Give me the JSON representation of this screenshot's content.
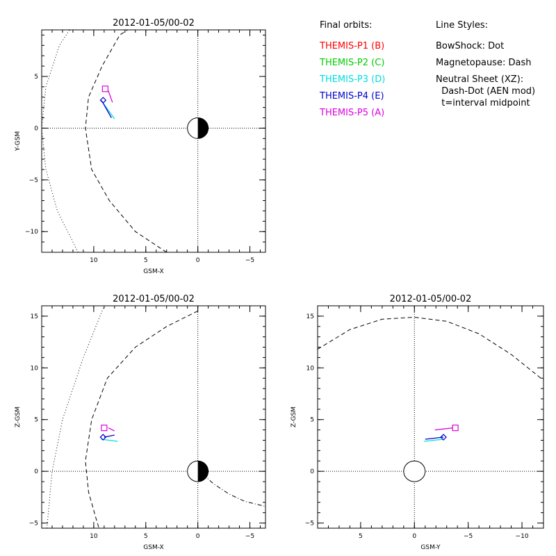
{
  "legend": {
    "orbits_title": "Final orbits:",
    "probes": [
      {
        "label": "THEMIS-P1 (B)",
        "color": "#ff0000"
      },
      {
        "label": "THEMIS-P2 (C)",
        "color": "#00cc00"
      },
      {
        "label": "THEMIS-P3 (D)",
        "color": "#00dddd"
      },
      {
        "label": "THEMIS-P4 (E)",
        "color": "#0000cc"
      },
      {
        "label": "THEMIS-P5 (A)",
        "color": "#dd00dd"
      }
    ],
    "styles_title": "Line Styles:",
    "styles": [
      "BowShock: Dot",
      "Magnetopause: Dash",
      "Neutral Sheet (XZ):",
      "  Dash-Dot (AEN mod)",
      "  t=interval midpoint"
    ]
  },
  "chart_data": [
    {
      "type": "line",
      "title": "2012-01-05/00-02",
      "xlabel": "GSM-X",
      "ylabel": "Y-GSM",
      "xlim": [
        15,
        -6.5
      ],
      "ylim": [
        -12,
        9.5
      ],
      "xticks": [
        10,
        5,
        0,
        -5
      ],
      "yticks": [
        -10,
        -5,
        0,
        5
      ],
      "orbits": [
        {
          "probe": "THEMIS-P3",
          "color": "#00dddd",
          "x": [
            9.3,
            8.0
          ],
          "y": [
            2.7,
            0.9
          ]
        },
        {
          "probe": "THEMIS-P4",
          "color": "#0000cc",
          "x": [
            9.2,
            8.3
          ],
          "y": [
            2.6,
            1.0
          ]
        },
        {
          "probe": "THEMIS-P5",
          "color": "#dd00dd",
          "x": [
            8.6,
            8.2
          ],
          "y": [
            3.6,
            2.5
          ]
        }
      ],
      "markers": [
        {
          "probe": "THEMIS-P5",
          "shape": "square",
          "x": 8.9,
          "y": 3.8,
          "color": "#dd00dd"
        },
        {
          "probe": "THEMIS-P4",
          "shape": "diamond",
          "x": 9.1,
          "y": 2.7,
          "color": "#0000cc"
        }
      ],
      "bowshock": {
        "x": [
          11.5,
          13.5,
          14.6,
          15.0,
          14.6,
          13.3,
          12.0
        ],
        "y": [
          -12,
          -8,
          -4,
          0,
          4,
          8,
          10
        ]
      },
      "magnetopause": {
        "x": [
          3,
          6,
          8.5,
          10.2,
          10.8,
          10.5,
          9.2,
          7.5,
          6
        ],
        "y": [
          -12,
          -10,
          -7,
          -4,
          0,
          3,
          6,
          9,
          10
        ]
      }
    },
    {
      "type": "line",
      "title": "2012-01-05/00-02",
      "xlabel": "GSM-X",
      "ylabel": "Z-GSM",
      "xlim": [
        15,
        -6.5
      ],
      "ylim": [
        -5.5,
        16
      ],
      "xticks": [
        10,
        5,
        0,
        -5
      ],
      "yticks": [
        -5,
        0,
        5,
        10,
        15
      ],
      "orbits": [
        {
          "probe": "THEMIS-P3",
          "color": "#00dddd",
          "x": [
            9.3,
            7.7
          ],
          "y": [
            3.1,
            2.9
          ]
        },
        {
          "probe": "THEMIS-P4",
          "color": "#0000cc",
          "x": [
            9.0,
            8.0
          ],
          "y": [
            3.3,
            3.5
          ]
        },
        {
          "probe": "THEMIS-P5",
          "color": "#dd00dd",
          "x": [
            8.6,
            8.0
          ],
          "y": [
            4.2,
            3.9
          ]
        }
      ],
      "markers": [
        {
          "probe": "THEMIS-P5",
          "shape": "square",
          "x": 9.0,
          "y": 4.2,
          "color": "#dd00dd"
        },
        {
          "probe": "THEMIS-P4",
          "shape": "diamond",
          "x": 9.1,
          "y": 3.3,
          "color": "#0000cc"
        }
      ],
      "bowshock": {
        "x": [
          14.5,
          14.0,
          13.0,
          11.0,
          9.0
        ],
        "y": [
          -5.5,
          0,
          5,
          11,
          16
        ]
      },
      "magnetopause": {
        "x": [
          0,
          3,
          6,
          8.7,
          10.2,
          10.8,
          10.5,
          9.8,
          9.5
        ],
        "y": [
          15.5,
          14,
          12,
          9,
          5,
          1,
          -2,
          -4.5,
          -5.5
        ]
      },
      "neutral_sheet": {
        "x": [
          -0.5,
          -1.5,
          -3,
          -4.5,
          -6.5
        ],
        "y": [
          -0.3,
          -1.2,
          -2.2,
          -2.9,
          -3.4
        ]
      }
    },
    {
      "type": "line",
      "title": "2012-01-05/00-02",
      "xlabel": "GSM-Y",
      "ylabel": "Z-GSM",
      "xlim": [
        9,
        -12
      ],
      "ylim": [
        -5.5,
        16
      ],
      "xticks": [
        5,
        0,
        -5,
        -10
      ],
      "yticks": [
        -5,
        0,
        5,
        10,
        15
      ],
      "orbits": [
        {
          "probe": "THEMIS-P3",
          "color": "#00dddd",
          "x": [
            -0.9,
            -2.7
          ],
          "y": [
            2.9,
            3.1
          ]
        },
        {
          "probe": "THEMIS-P4",
          "color": "#0000cc",
          "x": [
            -1.0,
            -2.7
          ],
          "y": [
            3.1,
            3.3
          ]
        },
        {
          "probe": "THEMIS-P5",
          "color": "#dd00dd",
          "x": [
            -1.9,
            -3.6
          ],
          "y": [
            4.0,
            4.2
          ]
        }
      ],
      "markers": [
        {
          "probe": "THEMIS-P5",
          "shape": "square",
          "x": -3.8,
          "y": 4.2,
          "color": "#dd00dd"
        },
        {
          "probe": "THEMIS-P4",
          "shape": "diamond",
          "x": -2.7,
          "y": 3.3,
          "color": "#0000cc"
        }
      ],
      "magnetopause": {
        "x": [
          9,
          6,
          3,
          0,
          -3,
          -6,
          -9,
          -12
        ],
        "y": [
          11.8,
          13.7,
          14.7,
          14.9,
          14.5,
          13.3,
          11.3,
          8.8
        ]
      }
    }
  ]
}
